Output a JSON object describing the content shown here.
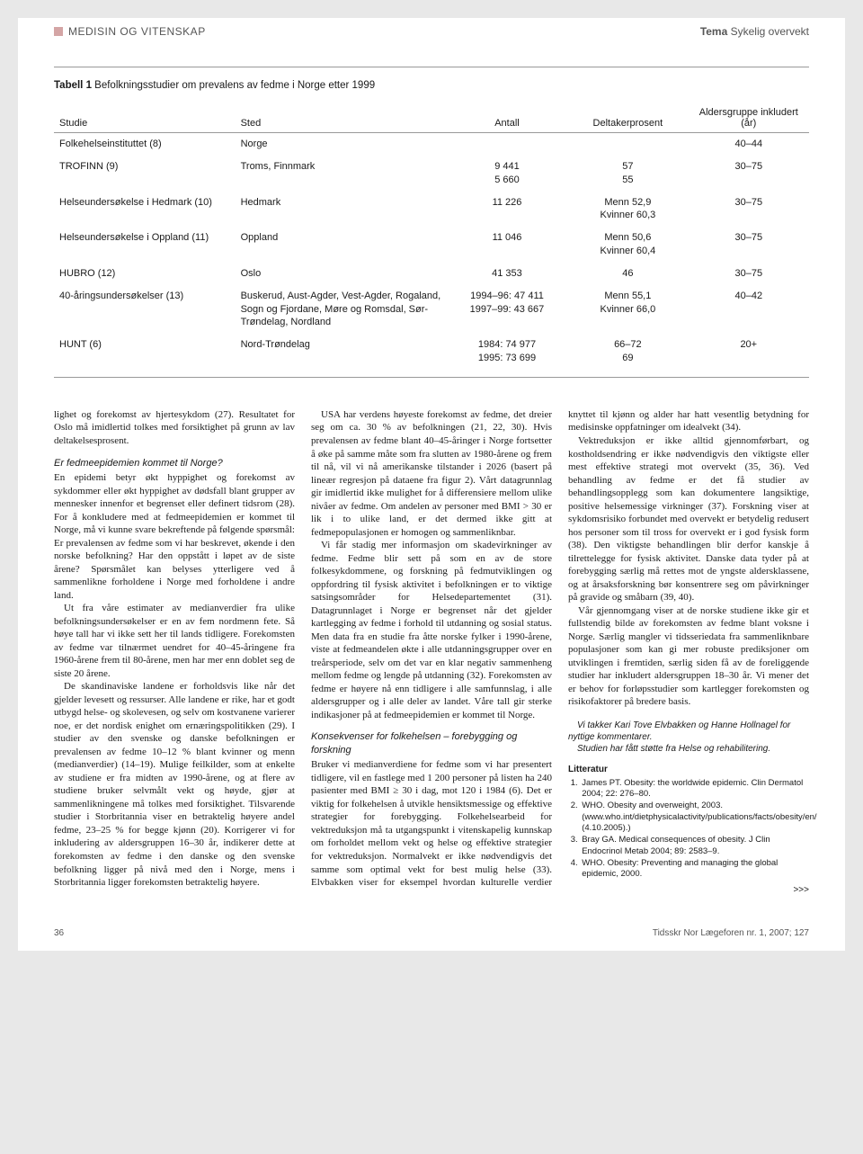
{
  "header": {
    "section": "MEDISIN OG VITENSKAP",
    "theme_prefix": "Tema",
    "theme": "Sykelig overvekt"
  },
  "table": {
    "caption_label": "Tabell 1",
    "caption_text": "Befolkningsstudier om prevalens av fedme i Norge etter 1999",
    "columns": [
      "Studie",
      "Sted",
      "Antall",
      "Deltakerprosent",
      "Aldersgruppe inkludert (år)"
    ],
    "rows": [
      {
        "studie": "Folkehelseinstituttet (8)",
        "sted": "Norge",
        "antall": "",
        "deltaker": "",
        "alder": "40–44"
      },
      {
        "studie": "TROFINN (9)",
        "sted": "Troms, Finnmark",
        "antall": "9 441\n5 660",
        "deltaker": "57\n55",
        "alder": "30–75"
      },
      {
        "studie": "Helseundersøkelse i Hedmark (10)",
        "sted": "Hedmark",
        "antall": "11 226",
        "deltaker": "Menn 52,9\nKvinner 60,3",
        "alder": "30–75"
      },
      {
        "studie": "Helseundersøkelse i Oppland (11)",
        "sted": "Oppland",
        "antall": "11 046",
        "deltaker": "Menn 50,6\nKvinner 60,4",
        "alder": "30–75"
      },
      {
        "studie": "HUBRO (12)",
        "sted": "Oslo",
        "antall": "41 353",
        "deltaker": "46",
        "alder": "30–75"
      },
      {
        "studie": "40-åringsundersøkelser (13)",
        "sted": "Buskerud, Aust-Agder, Vest-Agder, Rogaland, Sogn og Fjordane, Møre og Romsdal, Sør-Trøndelag, Nordland",
        "antall": "1994–96: 47 411\n1997–99: 43 667",
        "deltaker": "Menn 55,1\nKvinner 66,0",
        "alder": "40–42"
      },
      {
        "studie": "HUNT (6)",
        "sted": "Nord-Trøndelag",
        "antall": "1984: 74 977\n1995: 73 699",
        "deltaker": "66–72\n69",
        "alder": "20+"
      }
    ]
  },
  "body": {
    "p_intro": "lighet og forekomst av hjertesykdom (27). Resultatet for Oslo må imidlertid tolkes med forsiktighet på grunn av lav deltakelsesprosent.",
    "h_fedme": "Er fedmeepidemien kommet til Norge?",
    "p_fedme1": "En epidemi betyr økt hyppighet og forekomst av sykdommer eller økt hyppighet av dødsfall blant grupper av mennesker innen​for et begrenset eller definert tidsrom (28). For å konkludere med at fedmeepidemien er kommet til Norge, må vi kunne svare bekreftende på følgende spørsmål: Er prevalensen av fedme som vi har beskrevet, økende i den norske befolkning? Har den oppstått i løpet av de siste årene? Spørsmålet kan belyses ytterligere ved å sammenlikne forholdene i Norge med forholdene i andre land.",
    "p_fedme2": "Ut fra våre estimater av medianverdier fra ulike befolkningsundersøkelser er en av fem nordmenn fete. Så høye tall har vi ikke sett her til lands tidligere. Forekomsten av fedme var tilnærmet uendret for 40–45-åringene fra 1960-årene frem til 80-årene, men har mer enn doblet seg de siste 20 årene.",
    "p_fedme3": "De skandinaviske landene er forholdsvis like når det gjelder levesett og ressurser. Alle landene er rike, har et godt utbygd helse- og skolevesen, og selv om kostvanene varierer noe, er det nordisk enighet om ernærings​politikken (29). I studier av den svenske og danske befolkningen er prevalensen av fedme 10–12 % blant kvinner og menn (medianverdier) (14–19). Mulige feilkilder, som at enkelte av studiene er fra midten av 1990-årene, og at flere av studiene bruker selvmålt vekt og høyde, gjør at sammenlikningene må tolkes med forsiktighet. Tilsvarende studier i Storbritannia viser en betraktelig høyere andel fedme, 23–25 % for begge kjønn (20). Korrigerer vi for inkludering av aldersgruppen 16–30 år, indikerer dette at forekomsten av fedme i den danske og den svenske befolkning ligger på nivå med den i Norge, mens i Storbritannia ligger forekomsten betraktelig høyere.",
    "p_fedme4": "USA har verdens høyeste forekomst av fedme, det dreier seg om ca. 30 % av befolkningen (21, 22, 30). Hvis prevalensen av fedme blant 40–45-åringer i Norge fortsetter å øke på samme måte som fra slutten av 1980-årene og frem til nå, vil vi nå amerikanske tilstander i 2026 (basert på lineær regresjon på dataene fra figur 2). Vårt datagrunnlag gir imidlertid ikke mulighet for å differensiere mellom ulike nivåer av fedme. Om andelen av personer med BMI > 30 er lik i to ulike land, er det dermed ikke gitt at fedmepopulasjonen er homogen og sammenliknbar.",
    "p_fedme5": "Vi får stadig mer informasjon om skadevirkninger av fedme. Fedme blir sett på som en av de store folkesykdommene, og forskning på fedmutviklingen og oppfordring til fysisk aktivitet i befolkningen er to viktige satsingsområder for Helsedepartementet (31). Datagrunnlaget i Norge er begrenset når det gjelder kartlegging av fedme i forhold til utdanning og sosial status. Men data fra en studie fra åtte norske fylker i 1990-årene, viste at fedmeandelen økte i alle utdanningsgrupper over en treårsperiode, selv om det var en klar negativ sammenheng mellom fedme og lengde på utdanning (32). Forekomsten av fedme er høyere nå enn tidligere i alle samfunnslag, i alle aldersgrupper og i alle deler av landet. Våre tall gir sterke indikasjoner på at fedmeepidemien er kommet til Norge.",
    "h_kons": "Konsekvenser for folkehelsen – forebygging og forskning",
    "p_kons1": "Bruker vi medianverdiene for fedme som vi har presentert tidligere, vil en fastlege med 1 200 personer på listen ha 240 pasienter med BMI ≥ 30 i dag, mot 120 i 1984 (6). Det er viktig for folkehelsen å utvikle hensiktsmessige og effektive strategier for forebygging. Folkehelsearbeid for vektreduksjon må ta utgangspunkt i vitenskapelig kunnskap om forholdet mellom vekt og helse og effektive strategier for vektreduksjon. Normalvekt er ikke nødvendigvis det samme som optimal vekt for best mulig helse (33). Elvbakken viser for eksempel hvordan kulturelle verdier knyttet til kjønn og alder har hatt vesentlig betydning for medisinske oppfatninger om idealvekt (34).",
    "p_kons2": "Vektreduksjon er ikke alltid gjennomførbart, og kostholdsendring er ikke nødvendigvis den viktigste eller mest effektive strategi mot overvekt (35, 36). Ved behandling av fedme er det få studier av behandlingsopplegg som kan dokumentere langsiktige, positive helsemessige virkninger (37). Forsk​ning viser at sykdomsrisiko forbundet med overvekt er betydelig redusert hos personer som til tross for overvekt er i god fysisk form (38). Den viktigste behandlingen blir derfor kanskje å tilrettelegge for fysisk aktivitet. Danske data tyder på at forebygging særlig må rettes mot de yngste aldersklassene, og at årsaksforskning bør konsentrere seg om påvirkninger på gravide og småbarn (39, 40).",
    "p_kons3": "Vår gjennomgang viser at de norske studiene ikke gir et fullstendig bilde av forekomsten av fedme blant voksne i Norge. Særlig mangler vi tidsseriedata fra sammenliknbare populasjoner som kan gi mer robuste prediksjoner om utviklingen i fremtiden, særlig siden få av de foreliggende studier har inkludert aldersgruppen 18–30 år. Vi mener det er behov for forløpsstudier som kartlegger forekomsten og risikofaktorer på bredere basis.",
    "ack1": "Vi takker Kari Tove Elvbakken og Hanne Hollnagel for nyttige kommentarer.",
    "ack2": "Studien har fått støtte fra Helse og rehabilitering.",
    "lit_label": "Litteratur",
    "refs": [
      "James PT. Obesity: the worldwide epidemic. Clin Dermatol 2004; 22: 276–80.",
      "WHO. Obesity and overweight, 2003. (www.who.int/dietphysicalactivity/publications/facts/obesity/en/ (4.10.2005).)",
      "Bray GA. Medical consequences of obesity. J Clin Endocrinol Metab 2004; 89: 2583–9.",
      "WHO. Obesity: Preventing and managing the global epidemic, 2000."
    ],
    "more": ">>>"
  },
  "footer": {
    "page": "36",
    "journal": "Tidsskr Nor Lægeforen nr. 1, 2007; 127"
  }
}
